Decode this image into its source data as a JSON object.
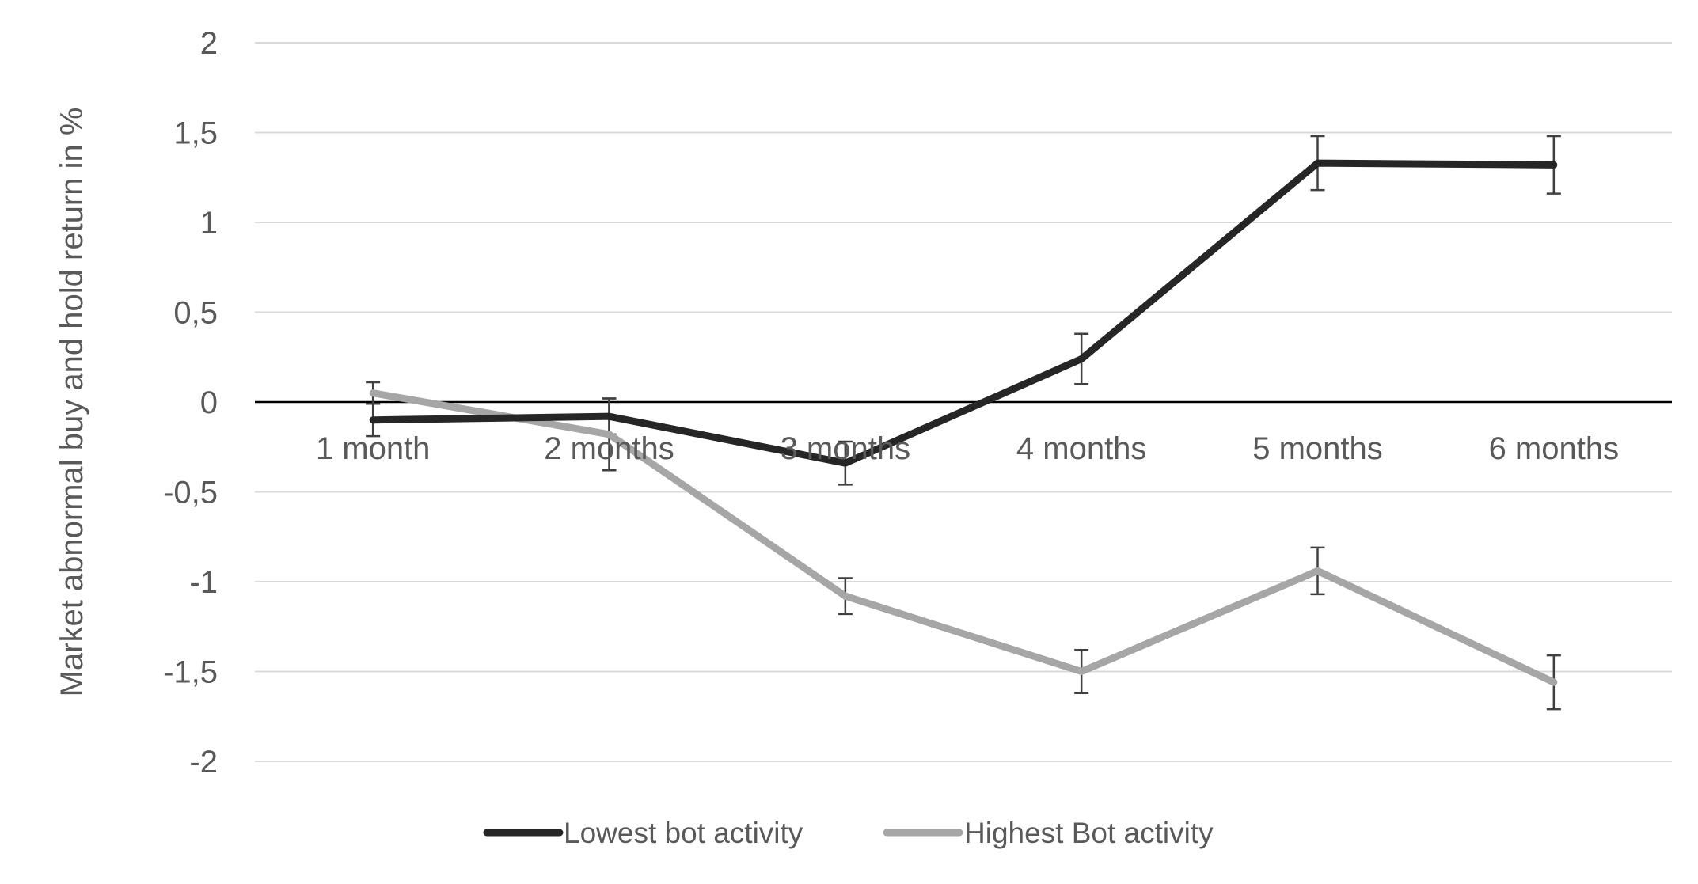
{
  "chart_data": {
    "type": "line",
    "title": "",
    "xlabel": "",
    "ylabel": "Market abnormal buy and hold return in %",
    "ylim": [
      -2,
      2
    ],
    "yticks": [
      2,
      1.5,
      1,
      0.5,
      0,
      -0.5,
      -1,
      -1.5,
      -2
    ],
    "ytick_labels": [
      "2",
      "1,5",
      "1",
      "0,5",
      "0",
      "-0,5",
      "-1",
      "-1,5",
      "-2"
    ],
    "categories": [
      "1 month",
      "2 months",
      "3 months",
      "4 months",
      "5 months",
      "6 months"
    ],
    "grid": true,
    "legend_position": "bottom",
    "series": [
      {
        "name": "Lowest bot activity",
        "color": "#262626",
        "values": [
          -0.1,
          -0.08,
          -0.34,
          0.24,
          1.33,
          1.32
        ],
        "error": [
          0.09,
          0.1,
          0.12,
          0.14,
          0.15,
          0.16
        ]
      },
      {
        "name": "Highest Bot activity",
        "color": "#a6a6a6",
        "values": [
          0.05,
          -0.18,
          -1.08,
          -1.5,
          -0.94,
          -1.56
        ],
        "error": [
          0.06,
          0.2,
          0.1,
          0.12,
          0.13,
          0.15
        ]
      }
    ]
  }
}
